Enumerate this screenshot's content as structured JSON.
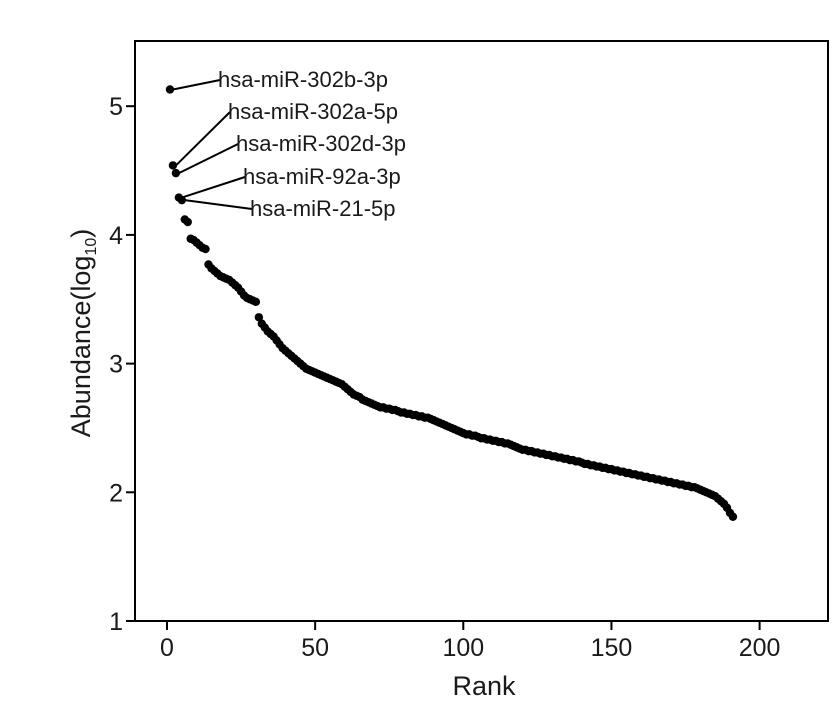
{
  "chart_data": {
    "type": "scatter",
    "title": "",
    "xlabel": "Rank",
    "ylabel": "Abundance(log",
    "ylabel_subscript": "10",
    "ylabel_close": ")",
    "xlim": [
      -10,
      225
    ],
    "ylim": [
      1,
      5.5
    ],
    "xticks": [
      0,
      50,
      100,
      150,
      200
    ],
    "yticks": [
      1,
      2,
      3,
      4,
      5
    ],
    "grid": false,
    "annotations": [
      {
        "label": "hsa-miR-302b-3p",
        "x": 1,
        "y": 5.13
      },
      {
        "label": "hsa-miR-302a-5p",
        "x": 2,
        "y": 4.54
      },
      {
        "label": "hsa-miR-302d-3p",
        "x": 3,
        "y": 4.48
      },
      {
        "label": "hsa-miR-92a-3p",
        "x": 4,
        "y": 4.29
      },
      {
        "label": "hsa-miR-21-5p",
        "x": 5,
        "y": 4.27
      }
    ],
    "points": [
      [
        1,
        5.13
      ],
      [
        2,
        4.54
      ],
      [
        3,
        4.48
      ],
      [
        4,
        4.29
      ],
      [
        5,
        4.27
      ],
      [
        6,
        4.12
      ],
      [
        7,
        4.1
      ],
      [
        8,
        3.97
      ],
      [
        9,
        3.96
      ],
      [
        10,
        3.94
      ],
      [
        11,
        3.92
      ],
      [
        12,
        3.9
      ],
      [
        13,
        3.89
      ],
      [
        14,
        3.77
      ],
      [
        15,
        3.74
      ],
      [
        16,
        3.72
      ],
      [
        17,
        3.7
      ],
      [
        18,
        3.68
      ],
      [
        19,
        3.67
      ],
      [
        20,
        3.66
      ],
      [
        21,
        3.65
      ],
      [
        22,
        3.63
      ],
      [
        23,
        3.61
      ],
      [
        24,
        3.59
      ],
      [
        25,
        3.56
      ],
      [
        26,
        3.53
      ],
      [
        27,
        3.51
      ],
      [
        28,
        3.5
      ],
      [
        29,
        3.49
      ],
      [
        30,
        3.48
      ],
      [
        31,
        3.36
      ],
      [
        32,
        3.31
      ],
      [
        33,
        3.28
      ],
      [
        34,
        3.25
      ],
      [
        35,
        3.23
      ],
      [
        36,
        3.21
      ],
      [
        37,
        3.18
      ],
      [
        38,
        3.15
      ],
      [
        39,
        3.12
      ],
      [
        40,
        3.1
      ],
      [
        41,
        3.08
      ],
      [
        42,
        3.06
      ],
      [
        43,
        3.04
      ],
      [
        44,
        3.02
      ],
      [
        45,
        3.0
      ],
      [
        46,
        2.98
      ],
      [
        47,
        2.96
      ],
      [
        48,
        2.95
      ],
      [
        49,
        2.94
      ],
      [
        50,
        2.93
      ],
      [
        51,
        2.92
      ],
      [
        52,
        2.91
      ],
      [
        53,
        2.9
      ],
      [
        54,
        2.89
      ],
      [
        55,
        2.88
      ],
      [
        56,
        2.87
      ],
      [
        57,
        2.86
      ],
      [
        58,
        2.85
      ],
      [
        59,
        2.84
      ],
      [
        60,
        2.82
      ],
      [
        61,
        2.8
      ],
      [
        62,
        2.78
      ],
      [
        63,
        2.76
      ],
      [
        64,
        2.75
      ],
      [
        65,
        2.74
      ],
      [
        66,
        2.72
      ],
      [
        67,
        2.71
      ],
      [
        68,
        2.7
      ],
      [
        69,
        2.69
      ],
      [
        70,
        2.68
      ],
      [
        71,
        2.67
      ],
      [
        72,
        2.66
      ],
      [
        73,
        2.66
      ],
      [
        74,
        2.65
      ],
      [
        75,
        2.65
      ],
      [
        76,
        2.64
      ],
      [
        77,
        2.64
      ],
      [
        78,
        2.63
      ],
      [
        79,
        2.62
      ],
      [
        80,
        2.62
      ],
      [
        81,
        2.61
      ],
      [
        82,
        2.61
      ],
      [
        83,
        2.6
      ],
      [
        84,
        2.6
      ],
      [
        85,
        2.59
      ],
      [
        86,
        2.59
      ],
      [
        87,
        2.58
      ],
      [
        88,
        2.58
      ],
      [
        89,
        2.57
      ],
      [
        90,
        2.56
      ],
      [
        91,
        2.55
      ],
      [
        92,
        2.54
      ],
      [
        93,
        2.53
      ],
      [
        94,
        2.52
      ],
      [
        95,
        2.51
      ],
      [
        96,
        2.5
      ],
      [
        97,
        2.49
      ],
      [
        98,
        2.48
      ],
      [
        99,
        2.47
      ],
      [
        100,
        2.46
      ],
      [
        101,
        2.45
      ],
      [
        102,
        2.45
      ],
      [
        103,
        2.44
      ],
      [
        104,
        2.44
      ],
      [
        105,
        2.43
      ],
      [
        106,
        2.42
      ],
      [
        107,
        2.42
      ],
      [
        108,
        2.41
      ],
      [
        109,
        2.41
      ],
      [
        110,
        2.4
      ],
      [
        111,
        2.4
      ],
      [
        112,
        2.39
      ],
      [
        113,
        2.39
      ],
      [
        114,
        2.38
      ],
      [
        115,
        2.38
      ],
      [
        116,
        2.37
      ],
      [
        117,
        2.36
      ],
      [
        118,
        2.35
      ],
      [
        119,
        2.34
      ],
      [
        120,
        2.33
      ],
      [
        121,
        2.33
      ],
      [
        122,
        2.32
      ],
      [
        123,
        2.32
      ],
      [
        124,
        2.31
      ],
      [
        125,
        2.31
      ],
      [
        126,
        2.3
      ],
      [
        127,
        2.3
      ],
      [
        128,
        2.29
      ],
      [
        129,
        2.29
      ],
      [
        130,
        2.28
      ],
      [
        131,
        2.28
      ],
      [
        132,
        2.27
      ],
      [
        133,
        2.27
      ],
      [
        134,
        2.26
      ],
      [
        135,
        2.26
      ],
      [
        136,
        2.25
      ],
      [
        137,
        2.25
      ],
      [
        138,
        2.24
      ],
      [
        139,
        2.24
      ],
      [
        140,
        2.23
      ],
      [
        141,
        2.22
      ],
      [
        142,
        2.22
      ],
      [
        143,
        2.21
      ],
      [
        144,
        2.21
      ],
      [
        145,
        2.2
      ],
      [
        146,
        2.2
      ],
      [
        147,
        2.19
      ],
      [
        148,
        2.19
      ],
      [
        149,
        2.18
      ],
      [
        150,
        2.18
      ],
      [
        151,
        2.17
      ],
      [
        152,
        2.17
      ],
      [
        153,
        2.16
      ],
      [
        154,
        2.16
      ],
      [
        155,
        2.15
      ],
      [
        156,
        2.15
      ],
      [
        157,
        2.14
      ],
      [
        158,
        2.14
      ],
      [
        159,
        2.13
      ],
      [
        160,
        2.13
      ],
      [
        161,
        2.12
      ],
      [
        162,
        2.12
      ],
      [
        163,
        2.11
      ],
      [
        164,
        2.11
      ],
      [
        165,
        2.1
      ],
      [
        166,
        2.1
      ],
      [
        167,
        2.09
      ],
      [
        168,
        2.09
      ],
      [
        169,
        2.08
      ],
      [
        170,
        2.08
      ],
      [
        171,
        2.07
      ],
      [
        172,
        2.07
      ],
      [
        173,
        2.06
      ],
      [
        174,
        2.06
      ],
      [
        175,
        2.05
      ],
      [
        176,
        2.05
      ],
      [
        177,
        2.04
      ],
      [
        178,
        2.04
      ],
      [
        179,
        2.03
      ],
      [
        180,
        2.02
      ],
      [
        181,
        2.01
      ],
      [
        182,
        2.0
      ],
      [
        183,
        1.99
      ],
      [
        184,
        1.98
      ],
      [
        185,
        1.97
      ],
      [
        186,
        1.95
      ],
      [
        187,
        1.93
      ],
      [
        188,
        1.91
      ],
      [
        189,
        1.88
      ],
      [
        190,
        1.84
      ],
      [
        191,
        1.81
      ]
    ]
  }
}
